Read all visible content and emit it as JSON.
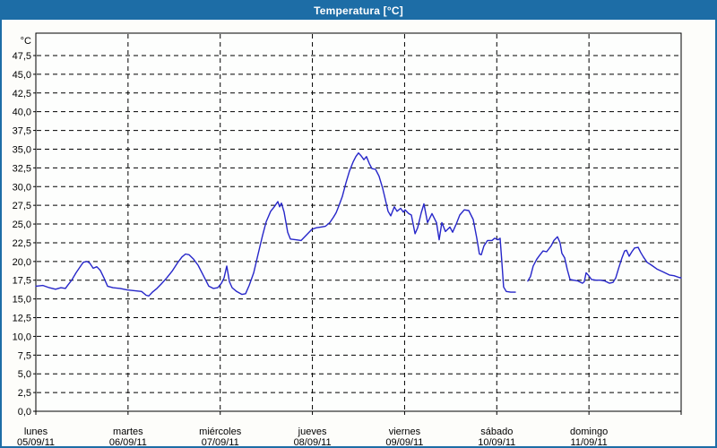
{
  "window": {
    "title": "Temperatura [°C]"
  },
  "colors": {
    "header_bg": "#1d6da6",
    "frame_border": "#1d6da6",
    "plot_bg": "#fdfefd",
    "page_bg": "#fdfdfa",
    "grid": "#000000",
    "axis": "#000000",
    "text": "#000000",
    "series_line": "#2626c9"
  },
  "chart_data": {
    "type": "line",
    "title": "Temperatura [°C]",
    "ylabel": "°C",
    "ylim": [
      0,
      50
    ],
    "y_tick_min": 0,
    "y_tick_max": 47.5,
    "y_tick_step": 2.5,
    "decimal_comma": true,
    "grid": "dashed",
    "x_unit": "days",
    "x_range_days": 7,
    "days": [
      {
        "name": "lunes",
        "date": "05/09/11"
      },
      {
        "name": "martes",
        "date": "06/09/11"
      },
      {
        "name": "miércoles",
        "date": "07/09/11"
      },
      {
        "name": "jueves",
        "date": "08/09/11"
      },
      {
        "name": "viernes",
        "date": "09/09/11"
      },
      {
        "name": "sábado",
        "date": "10/09/11"
      },
      {
        "name": "domingo",
        "date": "11/09/11"
      }
    ],
    "series": [
      {
        "name": "Temperatura",
        "points": [
          [
            0.0,
            16.7
          ],
          [
            0.078,
            16.8
          ],
          [
            0.146,
            16.5
          ],
          [
            0.214,
            16.3
          ],
          [
            0.272,
            16.5
          ],
          [
            0.321,
            16.4
          ],
          [
            0.35,
            16.9
          ],
          [
            0.389,
            17.5
          ],
          [
            0.437,
            18.5
          ],
          [
            0.486,
            19.4
          ],
          [
            0.515,
            19.9
          ],
          [
            0.554,
            20.0
          ],
          [
            0.583,
            19.8
          ],
          [
            0.622,
            19.1
          ],
          [
            0.661,
            19.3
          ],
          [
            0.7,
            18.8
          ],
          [
            0.739,
            17.8
          ],
          [
            0.778,
            16.7
          ],
          [
            0.836,
            16.5
          ],
          [
            0.914,
            16.4
          ],
          [
            0.992,
            16.2
          ],
          [
            1.069,
            16.1
          ],
          [
            1.147,
            16.0
          ],
          [
            1.196,
            15.5
          ],
          [
            1.225,
            15.4
          ],
          [
            1.264,
            15.9
          ],
          [
            1.313,
            16.4
          ],
          [
            1.361,
            17.0
          ],
          [
            1.419,
            17.8
          ],
          [
            1.478,
            18.7
          ],
          [
            1.536,
            19.8
          ],
          [
            1.585,
            20.6
          ],
          [
            1.624,
            21.0
          ],
          [
            1.662,
            20.9
          ],
          [
            1.711,
            20.3
          ],
          [
            1.76,
            19.5
          ],
          [
            1.818,
            18.1
          ],
          [
            1.876,
            16.7
          ],
          [
            1.925,
            16.4
          ],
          [
            1.974,
            16.5
          ],
          [
            2.013,
            17.1
          ],
          [
            2.042,
            17.8
          ],
          [
            2.071,
            19.4
          ],
          [
            2.1,
            17.3
          ],
          [
            2.129,
            16.5
          ],
          [
            2.178,
            16.0
          ],
          [
            2.236,
            15.6
          ],
          [
            2.275,
            15.7
          ],
          [
            2.314,
            16.8
          ],
          [
            2.363,
            18.5
          ],
          [
            2.411,
            21.0
          ],
          [
            2.46,
            23.5
          ],
          [
            2.499,
            25.3
          ],
          [
            2.547,
            26.7
          ],
          [
            2.586,
            27.3
          ],
          [
            2.625,
            28.0
          ],
          [
            2.644,
            27.3
          ],
          [
            2.664,
            27.8
          ],
          [
            2.693,
            26.6
          ],
          [
            2.712,
            25.3
          ],
          [
            2.732,
            23.9
          ],
          [
            2.761,
            23.0
          ],
          [
            2.819,
            22.9
          ],
          [
            2.878,
            22.8
          ],
          [
            2.917,
            23.3
          ],
          [
            2.956,
            23.8
          ],
          [
            2.995,
            24.3
          ],
          [
            3.043,
            24.5
          ],
          [
            3.092,
            24.6
          ],
          [
            3.14,
            24.7
          ],
          [
            3.189,
            25.2
          ],
          [
            3.228,
            25.9
          ],
          [
            3.257,
            26.5
          ],
          [
            3.286,
            27.4
          ],
          [
            3.325,
            28.7
          ],
          [
            3.364,
            30.5
          ],
          [
            3.403,
            32.1
          ],
          [
            3.442,
            33.3
          ],
          [
            3.471,
            34.0
          ],
          [
            3.5,
            34.5
          ],
          [
            3.529,
            34.1
          ],
          [
            3.558,
            33.6
          ],
          [
            3.587,
            34.0
          ],
          [
            3.617,
            33.1
          ],
          [
            3.646,
            32.4
          ],
          [
            3.685,
            32.3
          ],
          [
            3.723,
            31.4
          ],
          [
            3.762,
            29.8
          ],
          [
            3.791,
            28.3
          ],
          [
            3.821,
            26.7
          ],
          [
            3.85,
            26.1
          ],
          [
            3.889,
            27.3
          ],
          [
            3.918,
            26.7
          ],
          [
            3.957,
            27.1
          ],
          [
            3.986,
            26.6
          ],
          [
            4.006,
            26.9
          ],
          [
            4.045,
            26.4
          ],
          [
            4.074,
            26.2
          ],
          [
            4.113,
            23.7
          ],
          [
            4.142,
            24.5
          ],
          [
            4.181,
            26.5
          ],
          [
            4.21,
            27.7
          ],
          [
            4.249,
            25.2
          ],
          [
            4.297,
            26.4
          ],
          [
            4.346,
            25.2
          ],
          [
            4.375,
            22.9
          ],
          [
            4.404,
            25.2
          ],
          [
            4.443,
            24.0
          ],
          [
            4.492,
            24.6
          ],
          [
            4.521,
            23.9
          ],
          [
            4.56,
            25.0
          ],
          [
            4.599,
            26.2
          ],
          [
            4.647,
            26.9
          ],
          [
            4.696,
            26.8
          ],
          [
            4.744,
            25.6
          ],
          [
            4.783,
            23.1
          ],
          [
            4.812,
            21.0
          ],
          [
            4.832,
            20.9
          ],
          [
            4.861,
            22.1
          ],
          [
            4.9,
            22.8
          ],
          [
            4.948,
            22.8
          ],
          [
            4.977,
            23.1
          ],
          [
            5.016,
            22.9
          ],
          [
            5.036,
            23.1
          ],
          [
            5.055,
            20.0
          ],
          [
            5.074,
            16.6
          ],
          [
            5.103,
            16.0
          ],
          [
            5.152,
            15.9
          ],
          [
            5.201,
            15.9
          ],
          null,
          [
            5.337,
            17.4
          ],
          [
            5.366,
            18.0
          ],
          [
            5.395,
            19.4
          ],
          [
            5.434,
            20.3
          ],
          [
            5.463,
            20.8
          ],
          [
            5.502,
            21.4
          ],
          [
            5.541,
            21.3
          ],
          [
            5.59,
            22.1
          ],
          [
            5.619,
            22.8
          ],
          [
            5.658,
            23.3
          ],
          [
            5.687,
            22.5
          ],
          [
            5.706,
            21.1
          ],
          [
            5.736,
            20.5
          ],
          [
            5.765,
            18.9
          ],
          [
            5.794,
            17.6
          ],
          [
            5.833,
            17.5
          ],
          [
            5.881,
            17.4
          ],
          [
            5.93,
            17.1
          ],
          [
            5.949,
            17.3
          ],
          [
            5.969,
            18.5
          ],
          [
            5.998,
            18.1
          ],
          [
            6.027,
            17.6
          ],
          [
            6.076,
            17.5
          ],
          [
            6.125,
            17.5
          ],
          [
            6.173,
            17.4
          ],
          [
            6.222,
            17.1
          ],
          [
            6.261,
            17.2
          ],
          [
            6.29,
            17.8
          ],
          [
            6.319,
            19.0
          ],
          [
            6.358,
            20.5
          ],
          [
            6.387,
            21.4
          ],
          [
            6.407,
            21.5
          ],
          [
            6.436,
            20.7
          ],
          [
            6.465,
            21.3
          ],
          [
            6.494,
            21.8
          ],
          [
            6.533,
            21.9
          ],
          [
            6.562,
            21.2
          ],
          [
            6.591,
            20.6
          ],
          [
            6.63,
            19.9
          ],
          [
            6.679,
            19.5
          ],
          [
            6.737,
            19.0
          ],
          [
            6.805,
            18.6
          ],
          [
            6.873,
            18.2
          ],
          [
            6.922,
            18.1
          ],
          [
            6.97,
            17.9
          ],
          [
            7.0,
            17.8
          ]
        ]
      }
    ]
  }
}
